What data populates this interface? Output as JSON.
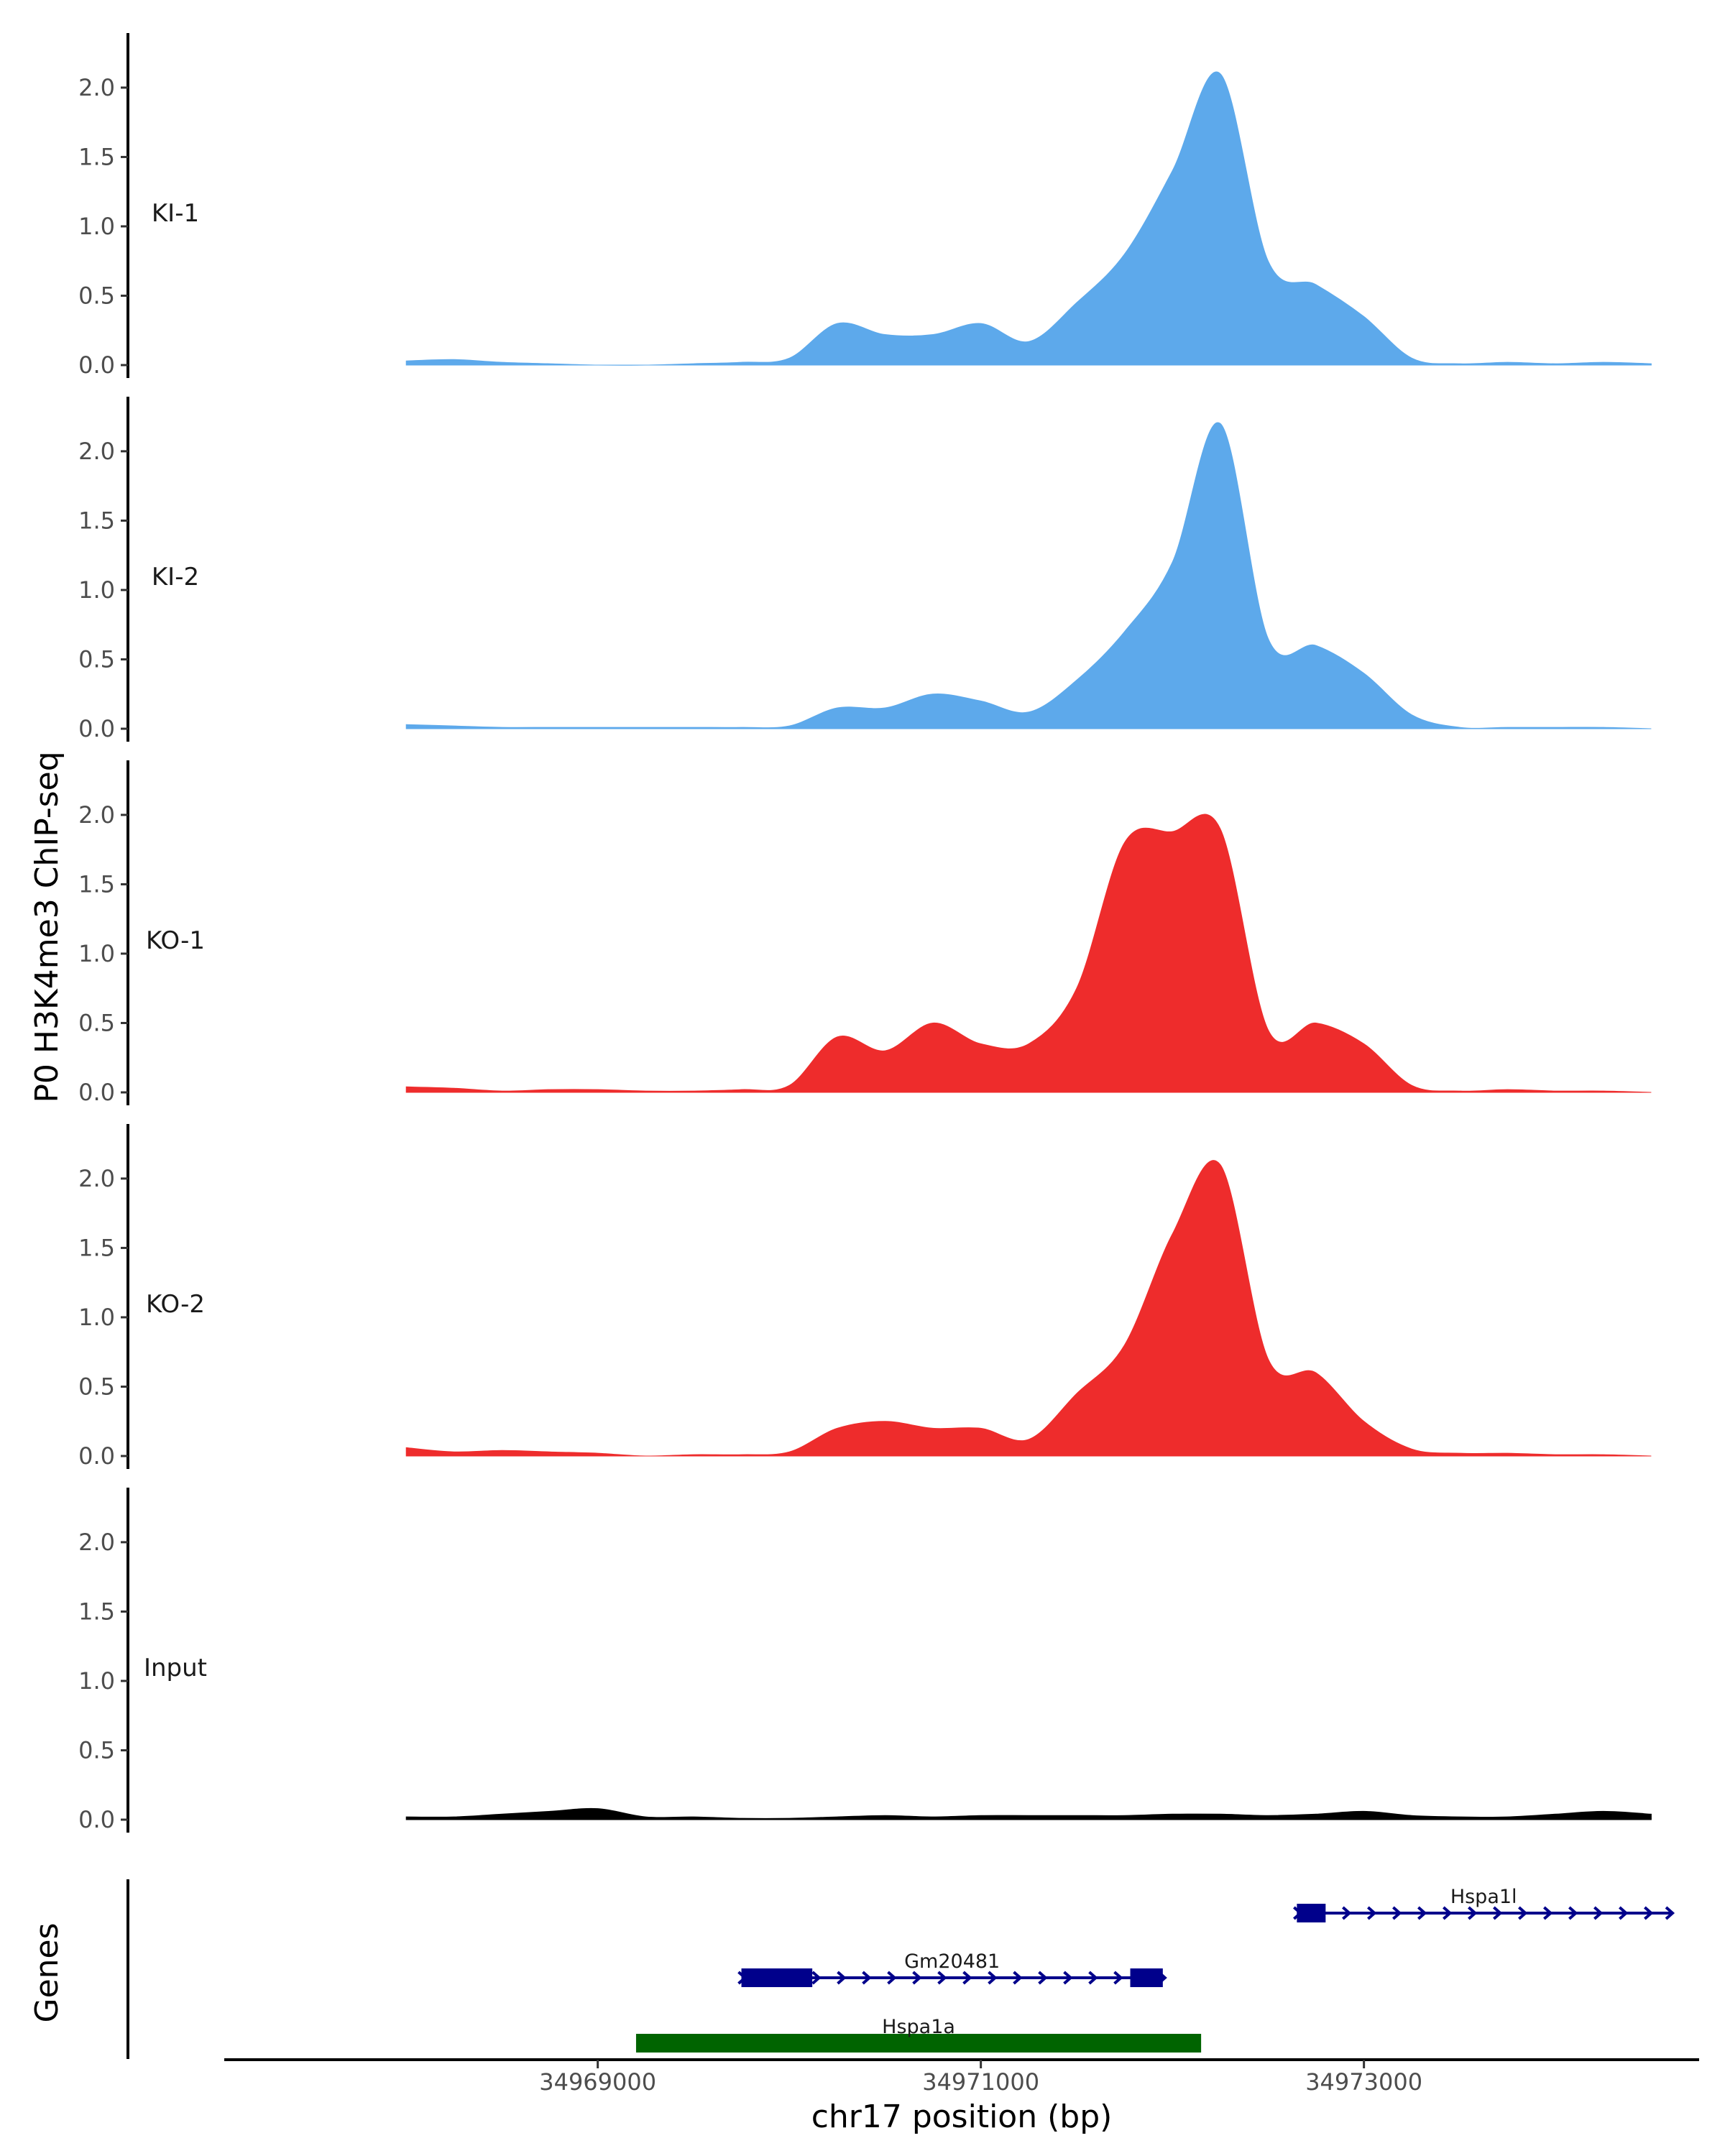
{
  "figure": {
    "y_axis_title": "P0 H3K4me3 ChIP-seq",
    "x_axis_title": "chr17 position (bp)",
    "genes_axis_title": "Genes"
  },
  "chart_data": {
    "type": "area",
    "title": "",
    "xlabel": "chr17 position (bp)",
    "ylabel": "P0 H3K4me3 ChIP-seq",
    "xlim": [
      34967050,
      34974750
    ],
    "ylim": [
      0,
      2.3
    ],
    "x_ticks": [
      34969000,
      34971000,
      34973000
    ],
    "x_tick_labels": [
      "34969000",
      "34971000",
      "34973000"
    ],
    "y_ticks": [
      0,
      0.5,
      1,
      1.5,
      2
    ],
    "y_tick_labels": [
      "0.0",
      "0.5",
      "1.0",
      "1.5",
      "2.0"
    ],
    "x": [
      34968000,
      34968250,
      34968500,
      34968750,
      34969000,
      34969250,
      34969500,
      34969750,
      34970000,
      34970250,
      34970500,
      34970750,
      34971000,
      34971250,
      34971500,
      34971750,
      34972000,
      34972250,
      34972500,
      34972750,
      34973000,
      34973250,
      34973500,
      34973750,
      34974000,
      34974250,
      34974500
    ],
    "series": [
      {
        "name": "KI-1",
        "color": "#5DA9EB",
        "values": [
          0.03,
          0.04,
          0.02,
          0.01,
          0.0,
          0.0,
          0.01,
          0.02,
          0.05,
          0.3,
          0.22,
          0.22,
          0.3,
          0.17,
          0.45,
          0.8,
          1.4,
          2.1,
          0.75,
          0.58,
          0.35,
          0.05,
          0.01,
          0.02,
          0.01,
          0.02,
          0.01
        ]
      },
      {
        "name": "KI-2",
        "color": "#5DA9EB",
        "values": [
          0.03,
          0.02,
          0.01,
          0.01,
          0.01,
          0.01,
          0.01,
          0.01,
          0.02,
          0.15,
          0.15,
          0.25,
          0.2,
          0.12,
          0.35,
          0.7,
          1.2,
          2.2,
          0.65,
          0.6,
          0.4,
          0.1,
          0.01,
          0.01,
          0.01,
          0.01,
          0.0
        ]
      },
      {
        "name": "KO-1",
        "color": "#EE2C2C",
        "values": [
          0.04,
          0.03,
          0.01,
          0.02,
          0.02,
          0.01,
          0.01,
          0.02,
          0.05,
          0.4,
          0.3,
          0.5,
          0.35,
          0.35,
          0.75,
          1.8,
          1.88,
          1.9,
          0.45,
          0.5,
          0.35,
          0.05,
          0.01,
          0.02,
          0.01,
          0.01,
          0.0
        ]
      },
      {
        "name": "KO-2",
        "color": "#EE2C2C",
        "values": [
          0.06,
          0.03,
          0.04,
          0.03,
          0.02,
          0.0,
          0.01,
          0.01,
          0.03,
          0.2,
          0.25,
          0.2,
          0.2,
          0.12,
          0.45,
          0.8,
          1.6,
          2.1,
          0.7,
          0.6,
          0.25,
          0.05,
          0.02,
          0.02,
          0.01,
          0.01,
          0.0
        ]
      },
      {
        "name": "Input",
        "color": "#000000",
        "values": [
          0.02,
          0.02,
          0.04,
          0.06,
          0.08,
          0.02,
          0.02,
          0.01,
          0.01,
          0.02,
          0.03,
          0.02,
          0.03,
          0.03,
          0.03,
          0.03,
          0.04,
          0.04,
          0.03,
          0.04,
          0.06,
          0.03,
          0.02,
          0.02,
          0.04,
          0.06,
          0.04
        ]
      }
    ],
    "genes": [
      {
        "name": "Hspa1l",
        "start": 34972650,
        "end": 34974600,
        "strand": "+",
        "color": "#00008B",
        "exons": [
          [
            34972650,
            34972800
          ]
        ]
      },
      {
        "name": "Gm20481",
        "start": 34969750,
        "end": 34971950,
        "strand": "+",
        "color": "#00008B",
        "exons": [
          [
            34969750,
            34970120
          ],
          [
            34971780,
            34971950
          ]
        ]
      },
      {
        "name": "Hspa1a",
        "start": 34969200,
        "end": 34972150,
        "strand": "",
        "color": "#006400",
        "exons": [
          [
            34969200,
            34972150
          ]
        ]
      }
    ]
  }
}
